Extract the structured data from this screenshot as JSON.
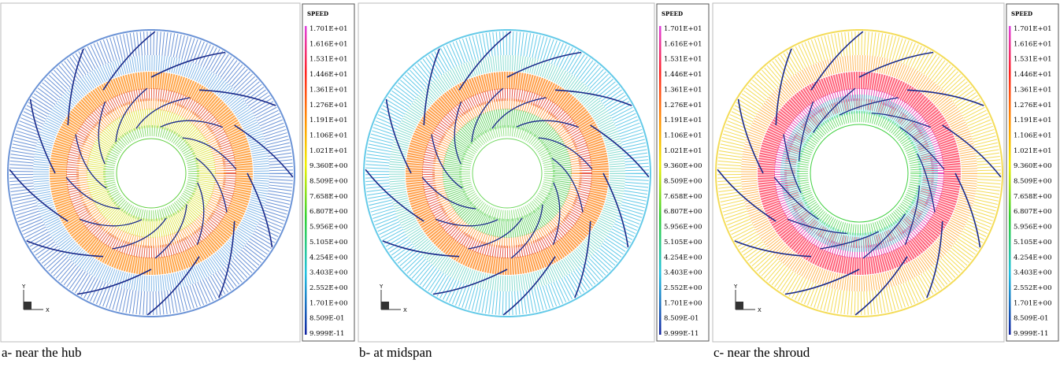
{
  "panels": [
    {
      "caption": "a- near the hub",
      "axis_labels": {
        "y": "Y",
        "x": "X"
      },
      "legend": {
        "title": "SPEED",
        "labels": [
          "1.701E+01",
          "1.616E+01",
          "1.531E+01",
          "1.446E+01",
          "1.361E+01",
          "1.276E+01",
          "1.191E+01",
          "1.106E+01",
          "1.021E+01",
          "9.360E+00",
          "8.509E+00",
          "7.658E+00",
          "6.807E+00",
          "5.956E+00",
          "5.105E+00",
          "4.254E+00",
          "3.403E+00",
          "2.552E+00",
          "1.701E+00",
          "8.509E-01",
          "9.999E-11"
        ]
      }
    },
    {
      "caption": "b- at midspan",
      "axis_labels": {
        "y": "Y",
        "x": "X"
      },
      "legend": {
        "title": "SPEED",
        "labels": [
          "1.701E+01",
          "1.616E+01",
          "1.531E+01",
          "1.446E+01",
          "1.361E+01",
          "1.276E+01",
          "1.191E+01",
          "1.106E+01",
          "1.021E+01",
          "9.360E+00",
          "8.509E+00",
          "7.658E+00",
          "6.807E+00",
          "5.956E+00",
          "5.105E+00",
          "4.254E+00",
          "3.403E+00",
          "2.552E+00",
          "1.701E+00",
          "8.509E-01",
          "9.999E-11"
        ]
      }
    },
    {
      "caption": "c- near the shroud",
      "axis_labels": {
        "y": "Y",
        "x": "X"
      },
      "legend": {
        "title": "SPEED",
        "labels": [
          "1.701E+01",
          "1.616E+01",
          "1.531E+01",
          "1.446E+01",
          "1.361E+01",
          "1.276E+01",
          "1.191E+01",
          "1.106E+01",
          "1.021E+01",
          "9.360E+00",
          "8.509E+00",
          "7.658E+00",
          "6.807E+00",
          "5.956E+00",
          "5.105E+00",
          "4.254E+00",
          "3.403E+00",
          "2.552E+00",
          "1.701E+00",
          "8.509E-01",
          "9.999E-11"
        ]
      }
    }
  ]
}
